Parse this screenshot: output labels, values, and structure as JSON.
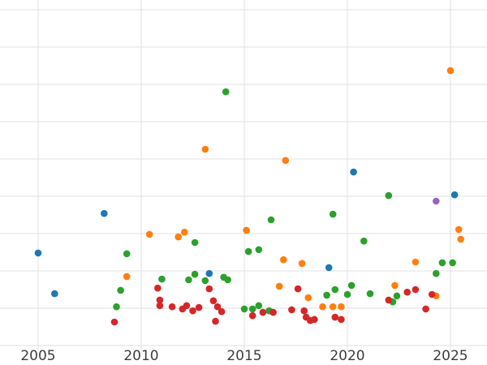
{
  "chart_data": {
    "type": "scatter",
    "title": "",
    "xlabel": "",
    "ylabel": "",
    "grid": true,
    "legend": "none",
    "x_ticks": [
      2005,
      2010,
      2015,
      2020,
      2025
    ],
    "xlim": [
      2003.15,
      2026.77
    ],
    "ylim": [
      -0.13,
      9.26
    ],
    "y_gridlines": [
      0,
      1,
      2,
      3,
      4,
      5,
      6,
      7,
      8,
      9
    ],
    "colors": {
      "background": "#ffffff",
      "gridline": "#e2e2e2",
      "tick_label": "#3d3d3d"
    },
    "marker_radius": 4.3,
    "series": [
      {
        "name": "series-blue",
        "color": "#1f77b4",
        "points": [
          [
            2005.0,
            2.48
          ],
          [
            2005.8,
            1.39
          ],
          [
            2008.2,
            3.54
          ],
          [
            2013.3,
            1.93
          ],
          [
            2019.1,
            2.09
          ],
          [
            2020.3,
            4.65
          ],
          [
            2025.2,
            4.04
          ]
        ]
      },
      {
        "name": "series-orange",
        "color": "#ff7f0e",
        "points": [
          [
            2009.3,
            1.85
          ],
          [
            2010.4,
            2.98
          ],
          [
            2011.8,
            2.91
          ],
          [
            2012.1,
            3.04
          ],
          [
            2013.1,
            5.26
          ],
          [
            2015.1,
            3.09
          ],
          [
            2016.7,
            1.59
          ],
          [
            2016.9,
            2.3
          ],
          [
            2017.0,
            4.96
          ],
          [
            2017.8,
            2.2
          ],
          [
            2018.1,
            1.28
          ],
          [
            2018.8,
            1.04
          ],
          [
            2019.3,
            1.04
          ],
          [
            2019.7,
            1.04
          ],
          [
            2022.3,
            1.61
          ],
          [
            2023.3,
            2.24
          ],
          [
            2024.3,
            1.33
          ],
          [
            2025.0,
            7.37
          ],
          [
            2025.4,
            3.11
          ],
          [
            2025.5,
            2.85
          ]
        ]
      },
      {
        "name": "series-green",
        "color": "#2ca02c",
        "points": [
          [
            2008.8,
            1.04
          ],
          [
            2009.0,
            1.48
          ],
          [
            2009.3,
            2.46
          ],
          [
            2011.0,
            1.78
          ],
          [
            2012.3,
            1.76
          ],
          [
            2012.6,
            1.91
          ],
          [
            2012.6,
            2.76
          ],
          [
            2013.1,
            1.74
          ],
          [
            2014.0,
            1.83
          ],
          [
            2014.1,
            6.8
          ],
          [
            2014.2,
            1.76
          ],
          [
            2015.0,
            0.98
          ],
          [
            2015.2,
            2.52
          ],
          [
            2015.4,
            0.98
          ],
          [
            2015.7,
            2.57
          ],
          [
            2015.7,
            1.07
          ],
          [
            2016.2,
            0.93
          ],
          [
            2016.3,
            3.37
          ],
          [
            2019.0,
            1.35
          ],
          [
            2019.3,
            3.52
          ],
          [
            2019.4,
            1.5
          ],
          [
            2020.0,
            1.37
          ],
          [
            2020.2,
            1.61
          ],
          [
            2020.8,
            2.8
          ],
          [
            2021.1,
            1.39
          ],
          [
            2022.0,
            4.02
          ],
          [
            2022.2,
            1.17
          ],
          [
            2022.4,
            1.33
          ],
          [
            2024.3,
            1.93
          ],
          [
            2024.6,
            2.22
          ],
          [
            2025.1,
            2.22
          ]
        ]
      },
      {
        "name": "series-red",
        "color": "#d62728",
        "points": [
          [
            2008.7,
            0.63
          ],
          [
            2010.8,
            1.54
          ],
          [
            2010.9,
            1.22
          ],
          [
            2010.9,
            1.07
          ],
          [
            2011.5,
            1.04
          ],
          [
            2012.0,
            0.98
          ],
          [
            2012.2,
            1.07
          ],
          [
            2012.5,
            0.93
          ],
          [
            2012.8,
            1.02
          ],
          [
            2013.3,
            1.52
          ],
          [
            2013.5,
            1.2
          ],
          [
            2013.6,
            0.65
          ],
          [
            2013.7,
            1.04
          ],
          [
            2013.9,
            0.91
          ],
          [
            2015.4,
            0.8
          ],
          [
            2015.9,
            0.89
          ],
          [
            2016.4,
            0.89
          ],
          [
            2017.3,
            0.96
          ],
          [
            2017.6,
            1.52
          ],
          [
            2017.9,
            0.93
          ],
          [
            2018.0,
            0.76
          ],
          [
            2018.2,
            0.67
          ],
          [
            2018.4,
            0.7
          ],
          [
            2019.4,
            0.76
          ],
          [
            2019.7,
            0.7
          ],
          [
            2022.0,
            1.22
          ],
          [
            2022.9,
            1.43
          ],
          [
            2023.3,
            1.5
          ],
          [
            2023.8,
            0.98
          ],
          [
            2024.1,
            1.37
          ]
        ]
      },
      {
        "name": "series-purple",
        "color": "#9467bd",
        "points": [
          [
            2024.3,
            3.87
          ]
        ]
      }
    ],
    "x_tick_labels": [
      "2005",
      "2010",
      "2015",
      "2020",
      "2025"
    ]
  }
}
